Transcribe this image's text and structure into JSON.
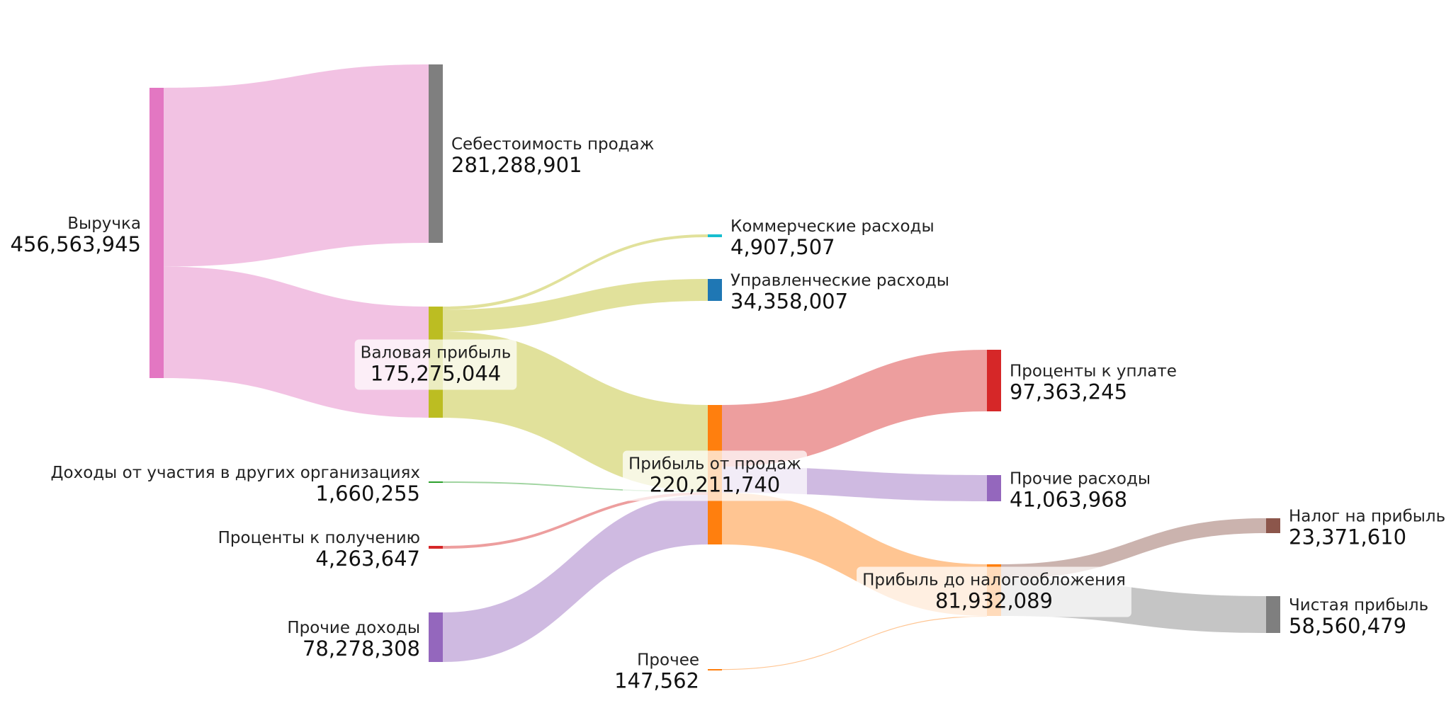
{
  "chart_data": {
    "type": "sankey",
    "title": "",
    "nodes": [
      {
        "id": "revenue",
        "label": "Выручка",
        "value": "456,563,945",
        "color": "#e377c2"
      },
      {
        "id": "cogs",
        "label": "Себестоимость продаж",
        "value": "281,288,901",
        "color": "#7f7f7f"
      },
      {
        "id": "gross",
        "label": "Валовая прибыль",
        "value": "175,275,044",
        "color": "#bcbd22"
      },
      {
        "id": "commercial",
        "label": "Коммерческие расходы",
        "value": "4,907,507",
        "color": "#17becf"
      },
      {
        "id": "admin",
        "label": "Управленческие расходы",
        "value": "34,358,007",
        "color": "#1f77b4"
      },
      {
        "id": "op_profit",
        "label": "Прибыль от продаж",
        "value": "220,211,740",
        "color": "#ff7f0e"
      },
      {
        "id": "participation",
        "label": "Доходы от участия в других организациях",
        "value": "1,660,255",
        "color": "#2ca02c"
      },
      {
        "id": "int_income",
        "label": "Проценты к получению",
        "value": "4,263,647",
        "color": "#d62728"
      },
      {
        "id": "other_income",
        "label": "Прочие доходы",
        "value": "78,278,308",
        "color": "#9467bd"
      },
      {
        "id": "int_payable",
        "label": "Проценты к уплате",
        "value": "97,363,245",
        "color": "#d62728"
      },
      {
        "id": "other_exp",
        "label": "Прочие расходы",
        "value": "41,063,968",
        "color": "#9467bd"
      },
      {
        "id": "pretax",
        "label": "Прибыль до налогообложения",
        "value": "81,932,089",
        "color": "#ff7f0e"
      },
      {
        "id": "misc",
        "label": "Прочее",
        "value": "147,562",
        "color": "#ff7f0e"
      },
      {
        "id": "tax",
        "label": "Налог на прибыль",
        "value": "23,371,610",
        "color": "#8c564b"
      },
      {
        "id": "net",
        "label": "Чистая прибыль",
        "value": "58,560,479",
        "color": "#7f7f7f"
      }
    ],
    "links": [
      {
        "source": "revenue",
        "target": "cogs",
        "value": 281288901,
        "color": "#e377c2"
      },
      {
        "source": "revenue",
        "target": "gross",
        "value": 175275044,
        "color": "#e377c2"
      },
      {
        "source": "gross",
        "target": "commercial",
        "value": 4907507,
        "color": "#bcbd22"
      },
      {
        "source": "gross",
        "target": "admin",
        "value": 34358007,
        "color": "#bcbd22"
      },
      {
        "source": "gross",
        "target": "op_profit",
        "value": 136009530,
        "color": "#bcbd22"
      },
      {
        "source": "participation",
        "target": "op_profit",
        "value": 1660255,
        "color": "#2ca02c"
      },
      {
        "source": "int_income",
        "target": "op_profit",
        "value": 4263647,
        "color": "#d62728"
      },
      {
        "source": "other_income",
        "target": "op_profit",
        "value": 78278308,
        "color": "#9467bd"
      },
      {
        "source": "op_profit",
        "target": "int_payable",
        "value": 97363245,
        "color": "#d62728"
      },
      {
        "source": "op_profit",
        "target": "other_exp",
        "value": 41063968,
        "color": "#9467bd"
      },
      {
        "source": "op_profit",
        "target": "pretax",
        "value": 81784527,
        "color": "#ff7f0e"
      },
      {
        "source": "misc",
        "target": "pretax",
        "value": 147562,
        "color": "#ff7f0e"
      },
      {
        "source": "pretax",
        "target": "tax",
        "value": 23371610,
        "color": "#8c564b"
      },
      {
        "source": "pretax",
        "target": "net",
        "value": 58560479,
        "color": "#7f7f7f"
      }
    ]
  }
}
